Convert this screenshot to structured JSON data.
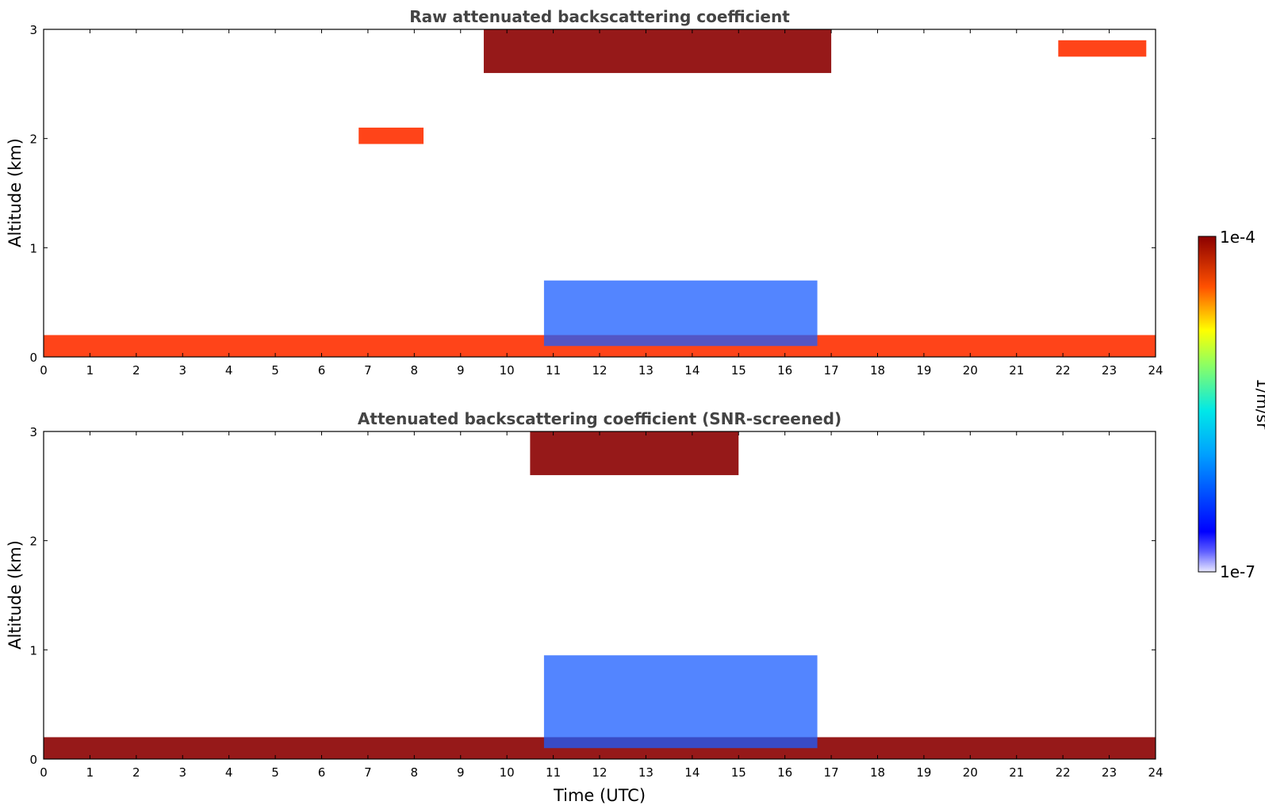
{
  "chart_data": [
    {
      "type": "heatmap",
      "title": "Raw attenuated backscattering coefficient",
      "xlabel": "",
      "ylabel": "Altitude (km)",
      "xlim": [
        0,
        24
      ],
      "ylim": [
        0,
        3
      ],
      "xticks": [
        "0",
        "1",
        "2",
        "3",
        "4",
        "5",
        "6",
        "7",
        "8",
        "9",
        "10",
        "11",
        "12",
        "13",
        "14",
        "15",
        "16",
        "17",
        "18",
        "19",
        "20",
        "21",
        "22",
        "23",
        "24"
      ],
      "yticks": [
        "0",
        "1",
        "2",
        "3"
      ],
      "features": [
        {
          "name": "surface aerosol layer",
          "time": [
            0,
            24
          ],
          "altitude": [
            0,
            0.2
          ],
          "level": "high"
        },
        {
          "name": "boundary layer",
          "time": [
            10.8,
            16.7
          ],
          "altitude": [
            0.1,
            0.7
          ],
          "level": "medium"
        },
        {
          "name": "high cloud",
          "time": [
            9.5,
            17
          ],
          "altitude": [
            2.6,
            3.0
          ],
          "level": "saturated"
        },
        {
          "name": "cloud at 2 km",
          "time": [
            6.8,
            8.2
          ],
          "altitude": [
            1.95,
            2.1
          ],
          "level": "high"
        },
        {
          "name": "cloud at 2.8 km",
          "time": [
            21.9,
            23.8
          ],
          "altitude": [
            2.75,
            2.9
          ],
          "level": "high"
        }
      ]
    },
    {
      "type": "heatmap",
      "title": "Attenuated backscattering coefficient (SNR-screened)",
      "xlabel": "Time (UTC)",
      "ylabel": "Altitude (km)",
      "xlim": [
        0,
        24
      ],
      "ylim": [
        0,
        3
      ],
      "xticks": [
        "0",
        "1",
        "2",
        "3",
        "4",
        "5",
        "6",
        "7",
        "8",
        "9",
        "10",
        "11",
        "12",
        "13",
        "14",
        "15",
        "16",
        "17",
        "18",
        "19",
        "20",
        "21",
        "22",
        "23",
        "24"
      ],
      "yticks": [
        "0",
        "1",
        "2",
        "3"
      ],
      "features": [
        {
          "name": "surface aerosol layer",
          "time": [
            0,
            24
          ],
          "altitude": [
            0,
            0.2
          ],
          "level": "saturated"
        },
        {
          "name": "boundary layer",
          "time": [
            10.8,
            16.7
          ],
          "altitude": [
            0.1,
            0.95
          ],
          "level": "medium"
        },
        {
          "name": "high cloud",
          "time": [
            10.5,
            15
          ],
          "altitude": [
            2.6,
            3.0
          ],
          "level": "saturated"
        }
      ]
    }
  ],
  "colorbar": {
    "label": "1/m/sr",
    "max_label": "1e-4",
    "min_label": "1e-7",
    "colormap": "jet",
    "scale": "log",
    "range": [
      1e-07,
      0.0001
    ]
  }
}
